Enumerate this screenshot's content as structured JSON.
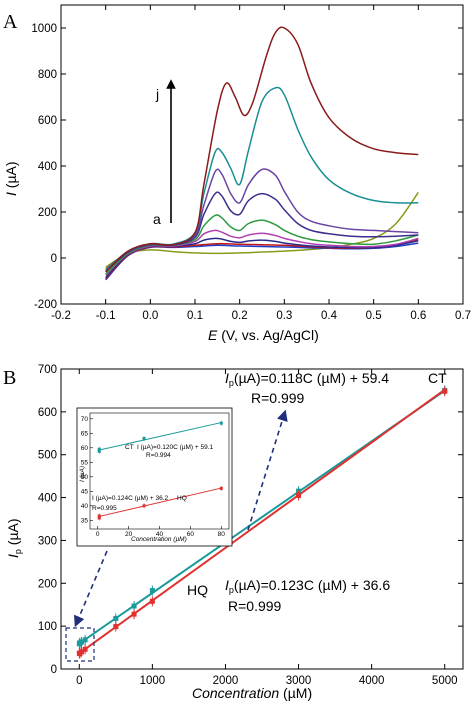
{
  "panels": {
    "a_label": "A",
    "b_label": "B"
  },
  "panel_a": {
    "x_label_italic": "E",
    "x_label_rest": " (V, vs. Ag/AgCl)",
    "y_label_italic": "I",
    "y_label_rest": " (µA)",
    "label_top": "j",
    "label_bottom": "a"
  },
  "panel_b": {
    "x_label": "Concentration",
    "x_unit": " (µM)",
    "y_label_italic": "I",
    "y_label_sub": "p",
    "y_label_rest": " (µA)",
    "ct_eq_i": "I",
    "ct_eq_sub": "p",
    "ct_eq_rest": "(µA)=0.118C (µM) + 59.4",
    "ct_name": "CT",
    "ct_r": "R=0.999",
    "hq_name": "HQ",
    "hq_eq_i": "I",
    "hq_eq_sub": "p",
    "hq_eq_rest": "(µA)=0.123C (µM) + 36.6",
    "hq_r": "R=0.999"
  },
  "inset": {
    "ct_name": "CT",
    "ct_eq": "I (µA)=0.120C (µM) + 59.1",
    "ct_r": "R=0.994",
    "hq_eq": "I (µA)=0.124C (µM) + 36.2",
    "hq_name": "HQ",
    "hq_r": "R=0.995",
    "x_label": "Concentration (µM)",
    "y_label": "I (µA)"
  },
  "chart_data": [
    {
      "type": "line",
      "panel": "A",
      "xlabel": "E (V, vs. Ag/AgCl)",
      "ylabel": "I (µA)",
      "xlim": [
        -0.2,
        0.7
      ],
      "ylim": [
        -200,
        1100
      ],
      "xticks": [
        "-0.2",
        "-0.1",
        "0.0",
        "0.1",
        "0.2",
        "0.3",
        "0.4",
        "0.5",
        "0.6",
        "0.7"
      ],
      "yticks": [
        "-200",
        "0",
        "200",
        "400",
        "600",
        "800",
        "1000"
      ],
      "annotations": [
        "a",
        "j"
      ],
      "series": [
        {
          "color": "#8b1a1a",
          "x": [
            -0.1,
            -0.05,
            0.0,
            0.05,
            0.1,
            0.12,
            0.15,
            0.17,
            0.19,
            0.21,
            0.23,
            0.26,
            0.28,
            0.3,
            0.33,
            0.36,
            0.4,
            0.45,
            0.5,
            0.55,
            0.6
          ],
          "y": [
            -60,
            30,
            62,
            58,
            110,
            320,
            640,
            760,
            700,
            620,
            680,
            880,
            980,
            1000,
            930,
            760,
            610,
            520,
            475,
            458,
            450
          ]
        },
        {
          "color": "#1a8e92",
          "x": [
            -0.1,
            -0.05,
            0.0,
            0.05,
            0.1,
            0.12,
            0.145,
            0.16,
            0.18,
            0.2,
            0.22,
            0.25,
            0.28,
            0.3,
            0.33,
            0.36,
            0.4,
            0.45,
            0.5,
            0.55,
            0.6
          ],
          "y": [
            -55,
            30,
            62,
            60,
            110,
            280,
            460,
            460,
            390,
            320,
            470,
            680,
            740,
            710,
            560,
            440,
            340,
            280,
            250,
            240,
            240
          ]
        },
        {
          "color": "#6a45a6",
          "x": [
            -0.1,
            -0.05,
            0.0,
            0.05,
            0.1,
            0.12,
            0.145,
            0.16,
            0.18,
            0.2,
            0.22,
            0.25,
            0.28,
            0.3,
            0.33,
            0.36,
            0.4,
            0.45,
            0.5,
            0.55,
            0.6
          ],
          "y": [
            -50,
            28,
            60,
            58,
            100,
            230,
            375,
            365,
            280,
            240,
            320,
            385,
            360,
            290,
            200,
            160,
            140,
            125,
            120,
            115,
            110
          ]
        },
        {
          "color": "#3c2e8e",
          "x": [
            -0.1,
            -0.05,
            0.0,
            0.05,
            0.1,
            0.12,
            0.145,
            0.16,
            0.18,
            0.2,
            0.22,
            0.25,
            0.28,
            0.3,
            0.33,
            0.36,
            0.4,
            0.45,
            0.5,
            0.55,
            0.6
          ],
          "y": [
            -60,
            25,
            58,
            56,
            90,
            190,
            280,
            270,
            205,
            190,
            250,
            280,
            255,
            210,
            150,
            120,
            105,
            95,
            92,
            95,
            100
          ]
        },
        {
          "color": "#2e9a3e",
          "x": [
            -0.1,
            -0.05,
            0.0,
            0.05,
            0.1,
            0.12,
            0.145,
            0.16,
            0.18,
            0.2,
            0.22,
            0.25,
            0.28,
            0.3,
            0.33,
            0.36,
            0.4,
            0.45,
            0.5,
            0.55,
            0.6
          ],
          "y": [
            -70,
            20,
            55,
            55,
            80,
            140,
            185,
            175,
            135,
            120,
            150,
            165,
            145,
            120,
            95,
            80,
            70,
            62,
            60,
            75,
            100
          ]
        },
        {
          "color": "#b040b0",
          "x": [
            -0.1,
            -0.05,
            0.0,
            0.05,
            0.1,
            0.12,
            0.145,
            0.16,
            0.18,
            0.2,
            0.22,
            0.25,
            0.28,
            0.3,
            0.33,
            0.36,
            0.4,
            0.45,
            0.5,
            0.55,
            0.6
          ],
          "y": [
            -75,
            18,
            52,
            52,
            72,
            105,
            120,
            112,
            95,
            88,
            100,
            108,
            98,
            85,
            72,
            62,
            55,
            50,
            50,
            60,
            85
          ]
        },
        {
          "color": "#2a2a8a",
          "x": [
            -0.1,
            -0.05,
            0.0,
            0.05,
            0.1,
            0.12,
            0.145,
            0.16,
            0.18,
            0.2,
            0.22,
            0.25,
            0.28,
            0.3,
            0.33,
            0.36,
            0.4,
            0.45,
            0.5,
            0.55,
            0.6
          ],
          "y": [
            -85,
            15,
            50,
            50,
            62,
            78,
            85,
            82,
            72,
            68,
            74,
            78,
            72,
            65,
            58,
            52,
            48,
            45,
            45,
            55,
            75
          ]
        },
        {
          "color": "#c01818",
          "x": [
            -0.1,
            -0.05,
            0.0,
            0.05,
            0.1,
            0.15,
            0.2,
            0.25,
            0.3,
            0.35,
            0.4,
            0.45,
            0.5,
            0.55,
            0.6
          ],
          "y": [
            -90,
            12,
            48,
            48,
            55,
            62,
            60,
            58,
            55,
            50,
            45,
            42,
            45,
            55,
            80
          ]
        },
        {
          "color": "#1e3ec8",
          "x": [
            -0.1,
            -0.05,
            0.0,
            0.05,
            0.1,
            0.15,
            0.2,
            0.25,
            0.3,
            0.35,
            0.4,
            0.45,
            0.5,
            0.55,
            0.6
          ],
          "y": [
            -95,
            10,
            46,
            46,
            50,
            55,
            52,
            50,
            48,
            45,
            42,
            40,
            42,
            50,
            65
          ]
        },
        {
          "color": "#8a9a1a",
          "x": [
            -0.1,
            -0.05,
            0.0,
            0.05,
            0.1,
            0.15,
            0.2,
            0.25,
            0.3,
            0.35,
            0.4,
            0.45,
            0.5,
            0.55,
            0.6
          ],
          "y": [
            -40,
            20,
            35,
            28,
            22,
            20,
            22,
            26,
            30,
            36,
            45,
            60,
            85,
            150,
            285
          ]
        }
      ]
    },
    {
      "type": "scatter",
      "panel": "B",
      "xlabel": "Concentration (µM)",
      "ylabel": "Ip (µA)",
      "xlim": [
        -250,
        5250
      ],
      "ylim": [
        0,
        700
      ],
      "xticks": [
        "0",
        "1000",
        "2000",
        "3000",
        "4000",
        "5000"
      ],
      "yticks": [
        "0",
        "100",
        "200",
        "300",
        "400",
        "500",
        "600",
        "700"
      ],
      "series": [
        {
          "name": "CT",
          "color": "#1a9a9a",
          "x": [
            1,
            5,
            10,
            30,
            80,
            500,
            750,
            1000,
            3000,
            5000
          ],
          "y": [
            59,
            61,
            60,
            63,
            68,
            118,
            147,
            183,
            415,
            650
          ],
          "fit": [
            0.118,
            59.4
          ]
        },
        {
          "name": "HQ",
          "color": "#e03030",
          "x": [
            1,
            5,
            10,
            30,
            80,
            500,
            750,
            1000,
            3000,
            5000
          ],
          "y": [
            37,
            36,
            37,
            40,
            46,
            99,
            128,
            158,
            405,
            648
          ],
          "fit": [
            0.123,
            36.6
          ]
        }
      ]
    },
    {
      "type": "scatter",
      "panel": "B-inset",
      "xlabel": "Concentration (µM)",
      "ylabel": "I (µA)",
      "xlim": [
        -5,
        85
      ],
      "ylim": [
        32,
        72
      ],
      "xticks": [
        "0",
        "20",
        "40",
        "60",
        "80"
      ],
      "yticks": [
        "35",
        "40",
        "45",
        "50",
        "55",
        "60",
        "65",
        "70"
      ],
      "series": [
        {
          "name": "CT",
          "color": "#1a9a9a",
          "x": [
            1,
            1,
            30,
            80
          ],
          "y": [
            59.5,
            58.8,
            63.2,
            68.5
          ],
          "fit": [
            0.12,
            59.1
          ]
        },
        {
          "name": "HQ",
          "color": "#e03030",
          "x": [
            1,
            1,
            30,
            80
          ],
          "y": [
            36.5,
            35.8,
            40,
            46
          ],
          "fit": [
            0.124,
            36.2
          ]
        }
      ]
    }
  ]
}
